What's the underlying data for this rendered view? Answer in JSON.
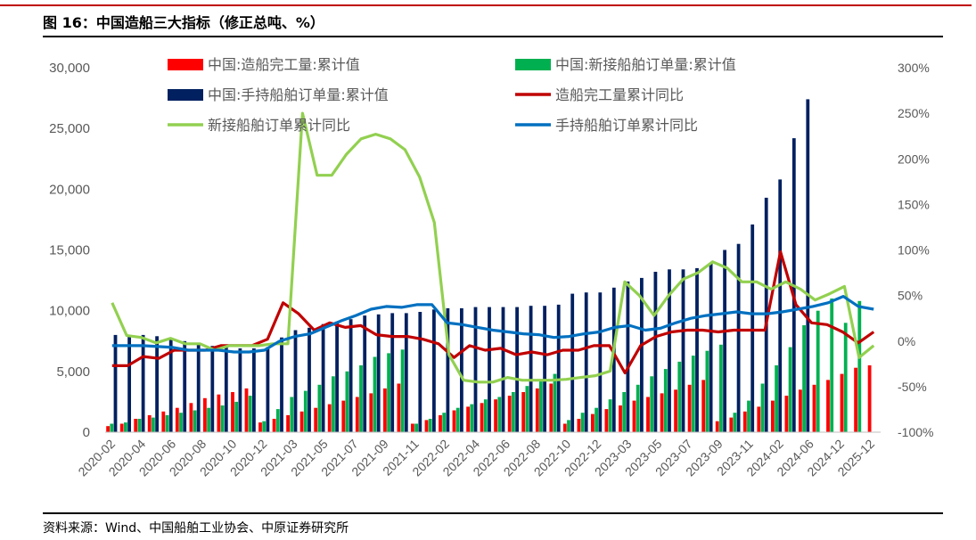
{
  "figure_title": "图 16：中国造船三大指标（修正总吨、%）",
  "source": "资料来源：Wind、中国船舶工业协会、中原证券研究所",
  "colors": {
    "completed": "#ff0000",
    "new_orders": "#00b050",
    "handheld": "#002060",
    "completed_yoy": "#c00000",
    "new_orders_yoy": "#92d050",
    "handheld_yoy": "#0070c0"
  },
  "chart_data": {
    "type": "bar",
    "title": "",
    "x_tick_labels": [
      "2020-02",
      "2020-04",
      "2020-06",
      "2020-08",
      "2020-10",
      "2020-12",
      "2021-03",
      "2021-05",
      "2021-07",
      "2021-09",
      "2021-11",
      "2022-02",
      "2022-04",
      "2022-06",
      "2022-08",
      "2022-10",
      "2022-12",
      "2023-03",
      "2023-05",
      "2023-07",
      "2023-09",
      "2023-11",
      "2024-02",
      "2024-06",
      "2024-12",
      "2025-12"
    ],
    "y_left": {
      "lim": [
        0,
        30000
      ],
      "ticks": [
        "0",
        "5,000",
        "10,000",
        "15,000",
        "20,000",
        "25,000",
        "30,000"
      ]
    },
    "y_right": {
      "lim": [
        -100,
        300
      ],
      "ticks": [
        "-100%",
        "-50%",
        "0%",
        "50%",
        "100%",
        "150%",
        "200%",
        "250%",
        "300%"
      ]
    },
    "legend": [
      "中国:造船完工量:累计值",
      "中国:新接船舶订单量:累计值",
      "中国:手持船舶订单量:累计值",
      "造船完工量累计同比",
      "新接船舶订单累计同比",
      "手持船舶订单累计同比"
    ],
    "series": [
      {
        "name": "中国:造船完工量:累计值",
        "type": "bar",
        "axis": "left",
        "values": [
          500,
          700,
          1100,
          1400,
          1700,
          2000,
          2400,
          2800,
          3100,
          3300,
          3600,
          800,
          1100,
          1400,
          1700,
          2000,
          2300,
          2600,
          2900,
          3200,
          3600,
          4000,
          700,
          1000,
          1400,
          1800,
          2100,
          2400,
          2700,
          3000,
          3300,
          3600,
          4000,
          700,
          1100,
          1500,
          1900,
          2200,
          2600,
          2900,
          3200,
          3500,
          3900,
          4300,
          900,
          1200,
          1700,
          2100,
          2600,
          3000,
          3500,
          3900,
          4300,
          4800,
          5300,
          5500
        ]
      },
      {
        "name": "中国:新接船舶订单量:累计值",
        "type": "bar",
        "axis": "left",
        "values": [
          700,
          800,
          1100,
          1200,
          1400,
          1600,
          1800,
          2000,
          2200,
          2500,
          3000,
          900,
          1900,
          2900,
          3400,
          3900,
          4600,
          5000,
          5500,
          6200,
          6500,
          6800,
          700,
          1100,
          1600,
          2000,
          2300,
          2700,
          2900,
          3300,
          3800,
          4300,
          4800,
          1000,
          1600,
          2000,
          2700,
          3300,
          3900,
          4600,
          5200,
          5800,
          6300,
          6700,
          7200,
          1600,
          2600,
          4000,
          5500,
          7000,
          8800,
          10000,
          11000,
          9000,
          10800
        ]
      },
      {
        "name": "中国:手持船舶订单量:累计值",
        "type": "bar",
        "axis": "left",
        "values": [
          8000,
          7900,
          8000,
          7900,
          7700,
          7500,
          7300,
          7100,
          7000,
          6900,
          6900,
          7000,
          7800,
          8400,
          8600,
          8900,
          9100,
          9300,
          9600,
          9700,
          9800,
          9800,
          9900,
          10100,
          10200,
          10200,
          10300,
          10300,
          10300,
          10300,
          10400,
          10400,
          10500,
          11400,
          11500,
          11500,
          11900,
          12400,
          12700,
          13200,
          13400,
          13400,
          13500,
          13900,
          15000,
          15500,
          17100,
          19300,
          20800,
          24200,
          27400
        ]
      },
      {
        "name": "造船完工量累计同比",
        "type": "line",
        "axis": "right",
        "values": [
          -27,
          -27,
          -17,
          -19,
          -10,
          -10,
          -10,
          -5,
          -5,
          -5,
          2,
          42,
          30,
          12,
          20,
          15,
          17,
          7,
          5,
          5,
          2,
          -3,
          -18,
          -5,
          -10,
          -8,
          -15,
          -12,
          -15,
          -10,
          -10,
          -5,
          -5,
          -35,
          -5,
          5,
          10,
          12,
          12,
          10,
          12,
          12,
          12,
          98,
          40,
          20,
          18,
          10,
          -2,
          10
        ]
      },
      {
        "name": "新接船舶订单累计同比",
        "type": "line",
        "axis": "right",
        "values": [
          42,
          6,
          4,
          -2,
          3,
          -3,
          -3,
          -10,
          -5,
          -5,
          -5,
          -3,
          -3,
          250,
          182,
          182,
          205,
          222,
          227,
          222,
          210,
          180,
          130,
          -15,
          -43,
          -45,
          -45,
          -40,
          -43,
          -43,
          -43,
          -42,
          -40,
          -38,
          -33,
          65,
          50,
          28,
          50,
          68,
          75,
          87,
          80,
          65,
          65,
          57,
          65,
          57,
          45,
          52,
          60,
          -18,
          -5
        ]
      },
      {
        "name": "手持船舶订单累计同比",
        "type": "line",
        "axis": "right",
        "values": [
          -5,
          -5,
          -5,
          -6,
          -7,
          -10,
          -10,
          -10,
          -12,
          -12,
          -10,
          0,
          5,
          8,
          15,
          22,
          28,
          35,
          38,
          37,
          40,
          40,
          20,
          18,
          15,
          12,
          10,
          8,
          7,
          4,
          5,
          8,
          10,
          15,
          17,
          12,
          14,
          20,
          25,
          28,
          30,
          32,
          30,
          30,
          32,
          35,
          38,
          42,
          49,
          38,
          35
        ]
      }
    ]
  }
}
